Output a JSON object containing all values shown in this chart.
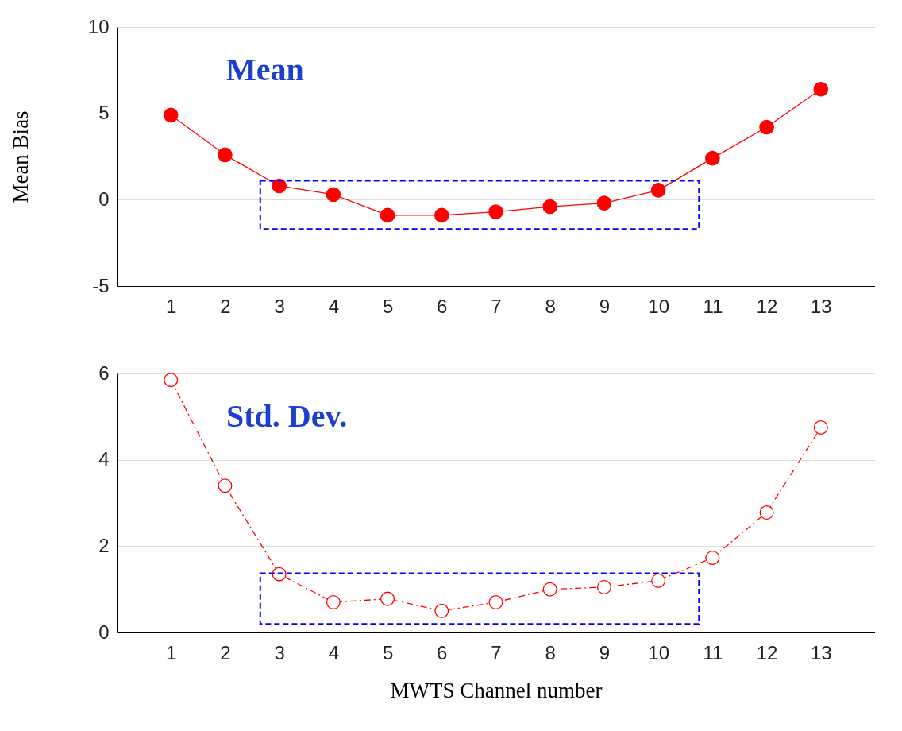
{
  "chart_data": [
    {
      "type": "line",
      "ylabel": "Mean Bias",
      "annotations": [
        "Mean"
      ],
      "x": [
        1,
        2,
        3,
        4,
        5,
        6,
        7,
        8,
        9,
        10,
        11,
        12,
        13
      ],
      "xlim": [
        0,
        14
      ],
      "xticks": [
        1,
        2,
        3,
        4,
        5,
        6,
        7,
        8,
        9,
        10,
        11,
        12,
        13
      ],
      "ylim": [
        -5,
        10
      ],
      "yticks": [
        -5,
        0,
        5,
        10
      ],
      "grid": "y",
      "marker": "circle",
      "line_style": "solid",
      "series": [
        {
          "color": "#ff0000",
          "values": [
            4.9,
            2.6,
            0.8,
            0.3,
            -0.9,
            -0.9,
            -0.7,
            -0.4,
            -0.2,
            0.55,
            2.4,
            4.2,
            6.4
          ]
        }
      ]
    },
    {
      "type": "line",
      "xlabel": "MWTS Channel number",
      "annotations": [
        "Std. Dev."
      ],
      "x": [
        1,
        2,
        3,
        4,
        5,
        6,
        7,
        8,
        9,
        10,
        11,
        12,
        13
      ],
      "xlim": [
        0,
        14
      ],
      "xticks": [
        1,
        2,
        3,
        4,
        5,
        6,
        7,
        8,
        9,
        10,
        11,
        12,
        13
      ],
      "ylim": [
        0,
        6
      ],
      "yticks": [
        0,
        2,
        4,
        6
      ],
      "grid": "y",
      "marker": "circle",
      "line_style": "dashed",
      "series": [
        {
          "color": "#ff0000",
          "values": [
            5.85,
            3.4,
            1.35,
            0.7,
            0.78,
            0.5,
            0.7,
            1.0,
            1.05,
            1.2,
            1.73,
            2.78,
            4.75
          ]
        }
      ]
    }
  ]
}
